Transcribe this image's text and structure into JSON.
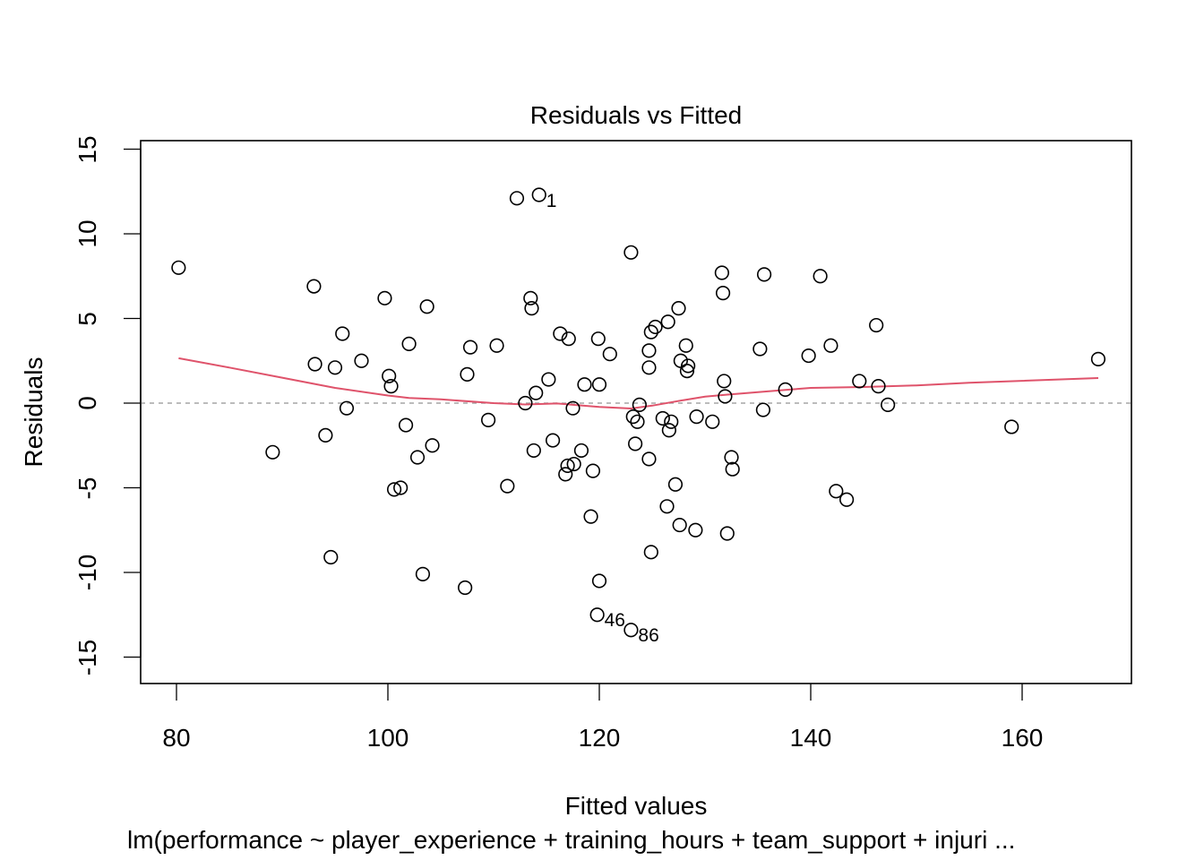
{
  "chart_data": {
    "type": "scatter",
    "title": "Residuals vs Fitted",
    "xlabel": "Fitted values",
    "ylabel": "Residuals",
    "caption": "lm(performance ~ player_experience + training_hours + team_support + injuri ...",
    "xlim": [
      76.6,
      170.4
    ],
    "ylim": [
      -16.5,
      15.5
    ],
    "xticks": [
      80,
      100,
      120,
      140,
      160
    ],
    "yticks": [
      -15,
      -10,
      -5,
      0,
      5,
      10,
      15
    ],
    "grid": false,
    "reference_line": {
      "y": 0,
      "style": "dashed",
      "color": "#a6a6a6"
    },
    "smoother_color": "#df536b",
    "point_style": "open-circle",
    "labeled_points": [
      {
        "label": "1",
        "x": 114.3,
        "y": 12.3
      },
      {
        "label": "46",
        "x": 119.8,
        "y": -12.5
      },
      {
        "label": "86",
        "x": 123.0,
        "y": -13.4
      }
    ],
    "points": [
      {
        "x": 80.2,
        "y": 8.0
      },
      {
        "x": 89.1,
        "y": -2.9
      },
      {
        "x": 93.0,
        "y": 6.9
      },
      {
        "x": 93.1,
        "y": 2.3
      },
      {
        "x": 94.1,
        "y": -1.9
      },
      {
        "x": 94.6,
        "y": -9.1
      },
      {
        "x": 95.0,
        "y": 2.1
      },
      {
        "x": 95.7,
        "y": 4.1
      },
      {
        "x": 96.1,
        "y": -0.3
      },
      {
        "x": 97.5,
        "y": 2.5
      },
      {
        "x": 99.7,
        "y": 6.2
      },
      {
        "x": 100.1,
        "y": 1.6
      },
      {
        "x": 100.3,
        "y": 1.0
      },
      {
        "x": 100.6,
        "y": -5.1
      },
      {
        "x": 101.2,
        "y": -5.0
      },
      {
        "x": 101.7,
        "y": -1.3
      },
      {
        "x": 102.0,
        "y": 3.5
      },
      {
        "x": 102.8,
        "y": -3.2
      },
      {
        "x": 103.3,
        "y": -10.1
      },
      {
        "x": 103.7,
        "y": 5.7
      },
      {
        "x": 104.2,
        "y": -2.5
      },
      {
        "x": 107.3,
        "y": -10.9
      },
      {
        "x": 107.5,
        "y": 1.7
      },
      {
        "x": 107.8,
        "y": 3.3
      },
      {
        "x": 109.5,
        "y": -1.0
      },
      {
        "x": 110.3,
        "y": 3.4
      },
      {
        "x": 111.3,
        "y": -4.9
      },
      {
        "x": 112.2,
        "y": 12.1
      },
      {
        "x": 113.0,
        "y": 0.0
      },
      {
        "x": 113.5,
        "y": 6.2
      },
      {
        "x": 113.6,
        "y": 5.6
      },
      {
        "x": 113.8,
        "y": -2.8
      },
      {
        "x": 114.0,
        "y": 0.6
      },
      {
        "x": 114.3,
        "y": 12.3
      },
      {
        "x": 115.2,
        "y": 1.4
      },
      {
        "x": 115.6,
        "y": -2.2
      },
      {
        "x": 116.3,
        "y": 4.1
      },
      {
        "x": 116.8,
        "y": -4.2
      },
      {
        "x": 117.0,
        "y": -3.7
      },
      {
        "x": 117.1,
        "y": 3.8
      },
      {
        "x": 117.5,
        "y": -0.3
      },
      {
        "x": 117.6,
        "y": -3.6
      },
      {
        "x": 118.3,
        "y": -2.8
      },
      {
        "x": 118.6,
        "y": 1.1
      },
      {
        "x": 119.2,
        "y": -6.7
      },
      {
        "x": 119.4,
        "y": -4.0
      },
      {
        "x": 119.8,
        "y": -12.5
      },
      {
        "x": 119.9,
        "y": 3.8
      },
      {
        "x": 120.0,
        "y": 1.1
      },
      {
        "x": 120.0,
        "y": -10.5
      },
      {
        "x": 121.0,
        "y": 2.9
      },
      {
        "x": 123.0,
        "y": 8.9
      },
      {
        "x": 123.0,
        "y": -13.4
      },
      {
        "x": 123.2,
        "y": -0.8
      },
      {
        "x": 123.4,
        "y": -2.4
      },
      {
        "x": 123.6,
        "y": -1.1
      },
      {
        "x": 123.8,
        "y": -0.1
      },
      {
        "x": 124.7,
        "y": -3.3
      },
      {
        "x": 124.7,
        "y": 3.1
      },
      {
        "x": 124.7,
        "y": 2.1
      },
      {
        "x": 124.9,
        "y": 4.2
      },
      {
        "x": 124.9,
        "y": -8.8
      },
      {
        "x": 125.3,
        "y": 4.5
      },
      {
        "x": 126.0,
        "y": -0.9
      },
      {
        "x": 126.4,
        "y": -6.1
      },
      {
        "x": 126.5,
        "y": 4.8
      },
      {
        "x": 126.6,
        "y": -1.6
      },
      {
        "x": 126.8,
        "y": -1.1
      },
      {
        "x": 127.2,
        "y": -4.8
      },
      {
        "x": 127.5,
        "y": 5.6
      },
      {
        "x": 127.6,
        "y": -7.2
      },
      {
        "x": 127.7,
        "y": 2.5
      },
      {
        "x": 128.2,
        "y": 3.4
      },
      {
        "x": 128.3,
        "y": 1.9
      },
      {
        "x": 128.4,
        "y": 2.2
      },
      {
        "x": 129.1,
        "y": -7.5
      },
      {
        "x": 129.2,
        "y": -0.8
      },
      {
        "x": 130.7,
        "y": -1.1
      },
      {
        "x": 131.6,
        "y": 7.7
      },
      {
        "x": 131.7,
        "y": 6.5
      },
      {
        "x": 131.8,
        "y": 1.3
      },
      {
        "x": 131.9,
        "y": 0.4
      },
      {
        "x": 132.1,
        "y": -7.7
      },
      {
        "x": 132.5,
        "y": -3.2
      },
      {
        "x": 132.6,
        "y": -3.9
      },
      {
        "x": 135.2,
        "y": 3.2
      },
      {
        "x": 135.5,
        "y": -0.4
      },
      {
        "x": 135.6,
        "y": 7.6
      },
      {
        "x": 137.6,
        "y": 0.8
      },
      {
        "x": 139.8,
        "y": 2.8
      },
      {
        "x": 140.9,
        "y": 7.5
      },
      {
        "x": 141.9,
        "y": 3.4
      },
      {
        "x": 142.4,
        "y": -5.2
      },
      {
        "x": 143.4,
        "y": -5.7
      },
      {
        "x": 144.6,
        "y": 1.3
      },
      {
        "x": 146.2,
        "y": 4.6
      },
      {
        "x": 146.4,
        "y": 1.0
      },
      {
        "x": 147.3,
        "y": -0.1
      },
      {
        "x": 159.0,
        "y": -1.4
      },
      {
        "x": 167.2,
        "y": 2.6
      }
    ],
    "smoother": {
      "x": [
        80.2,
        85,
        90,
        95,
        100,
        102,
        105,
        110,
        113,
        116,
        120,
        123,
        125,
        128,
        130,
        132,
        135,
        138,
        140,
        145,
        150,
        155,
        160,
        167.2
      ],
      "y": [
        2.65,
        2.1,
        1.5,
        0.9,
        0.45,
        0.3,
        0.22,
        0.0,
        -0.08,
        -0.02,
        -0.22,
        -0.32,
        -0.15,
        0.18,
        0.38,
        0.5,
        0.65,
        0.8,
        0.9,
        0.95,
        1.05,
        1.2,
        1.32,
        1.48
      ]
    }
  }
}
